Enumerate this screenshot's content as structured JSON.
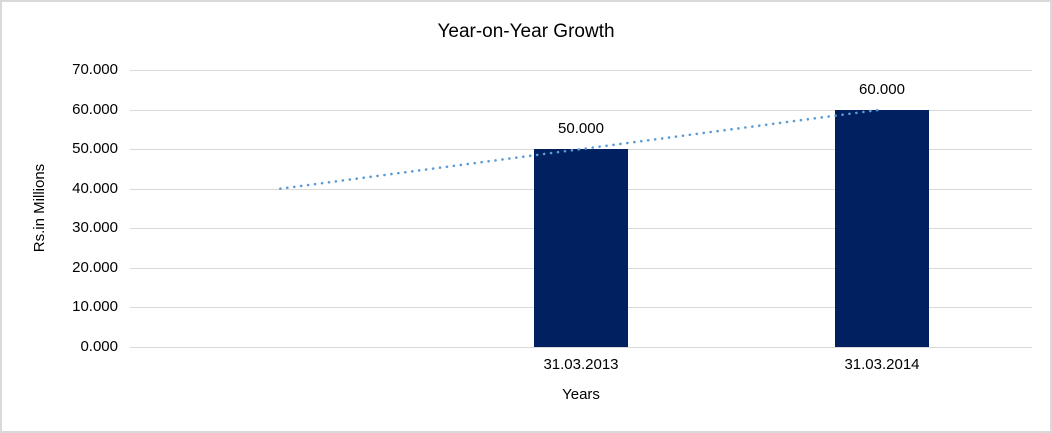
{
  "chart_data": {
    "type": "bar",
    "title": "Year-on-Year Growth",
    "xlabel": "Years",
    "ylabel": "Rs.in Millions",
    "categories": [
      "",
      "31.03.2013",
      "31.03.2014"
    ],
    "series": [
      {
        "name": "Rs.in Millions",
        "values": [
          null,
          50,
          60
        ],
        "value_labels": [
          "",
          "50.000",
          "60.000"
        ],
        "color": "#002060"
      }
    ],
    "trendline": {
      "style": "dotted",
      "color": "#5b9bd5",
      "points": [
        {
          "category_index": 0,
          "value": 40
        },
        {
          "category_index": 2,
          "value": 60
        }
      ]
    },
    "ylim": [
      0,
      70
    ],
    "ytick_step": 10,
    "ytick_labels": [
      "0.000",
      "10.000",
      "20.000",
      "30.000",
      "40.000",
      "50.000",
      "60.000",
      "70.000"
    ],
    "grid": true,
    "legend_position": "none",
    "colors": {
      "bar": "#002060",
      "trendline": "#5b9bd5",
      "gridline": "#d9d9d9",
      "text": "#000000",
      "border": "#d9d9d9",
      "background": "#ffffff"
    }
  }
}
